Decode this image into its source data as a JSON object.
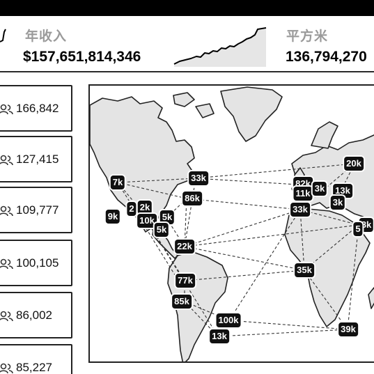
{
  "kpis": [
    {
      "label": "年收入",
      "value": "$157,651,814,346"
    },
    {
      "label": "平方米",
      "value": "136,794,270"
    }
  ],
  "stats": [
    {
      "icon": "users-icon",
      "value": "166,842"
    },
    {
      "icon": "users-icon",
      "value": "127,415"
    },
    {
      "icon": "users-icon",
      "value": "109,777"
    },
    {
      "icon": "users-icon",
      "value": "100,105"
    },
    {
      "icon": "users-icon",
      "value": "86,002"
    },
    {
      "icon": "users-icon",
      "value": "85,227"
    }
  ],
  "map": {
    "badges": [
      {
        "id": "b1",
        "label": "7k"
      },
      {
        "id": "b2",
        "label": "33k"
      },
      {
        "id": "b3",
        "label": "86k"
      },
      {
        "id": "b4",
        "label": "9k"
      },
      {
        "id": "b5",
        "label": "2"
      },
      {
        "id": "b6",
        "label": "2k"
      },
      {
        "id": "b7",
        "label": "10k"
      },
      {
        "id": "b8",
        "label": "5k"
      },
      {
        "id": "b9",
        "label": "5k"
      },
      {
        "id": "b10",
        "label": "22k"
      },
      {
        "id": "b11",
        "label": "77k"
      },
      {
        "id": "b12",
        "label": "85k"
      },
      {
        "id": "b13",
        "label": "100k"
      },
      {
        "id": "b14",
        "label": "13k"
      },
      {
        "id": "b15",
        "label": "82k"
      },
      {
        "id": "b16",
        "label": "11k"
      },
      {
        "id": "b17",
        "label": "3k"
      },
      {
        "id": "b18",
        "label": "13k"
      },
      {
        "id": "b19",
        "label": "3k"
      },
      {
        "id": "b20",
        "label": "20k"
      },
      {
        "id": "b21",
        "label": "33k"
      },
      {
        "id": "b22",
        "label": "8k"
      },
      {
        "id": "b23",
        "label": "5"
      },
      {
        "id": "b24",
        "label": "35k"
      },
      {
        "id": "b25",
        "label": "39k"
      }
    ]
  }
}
